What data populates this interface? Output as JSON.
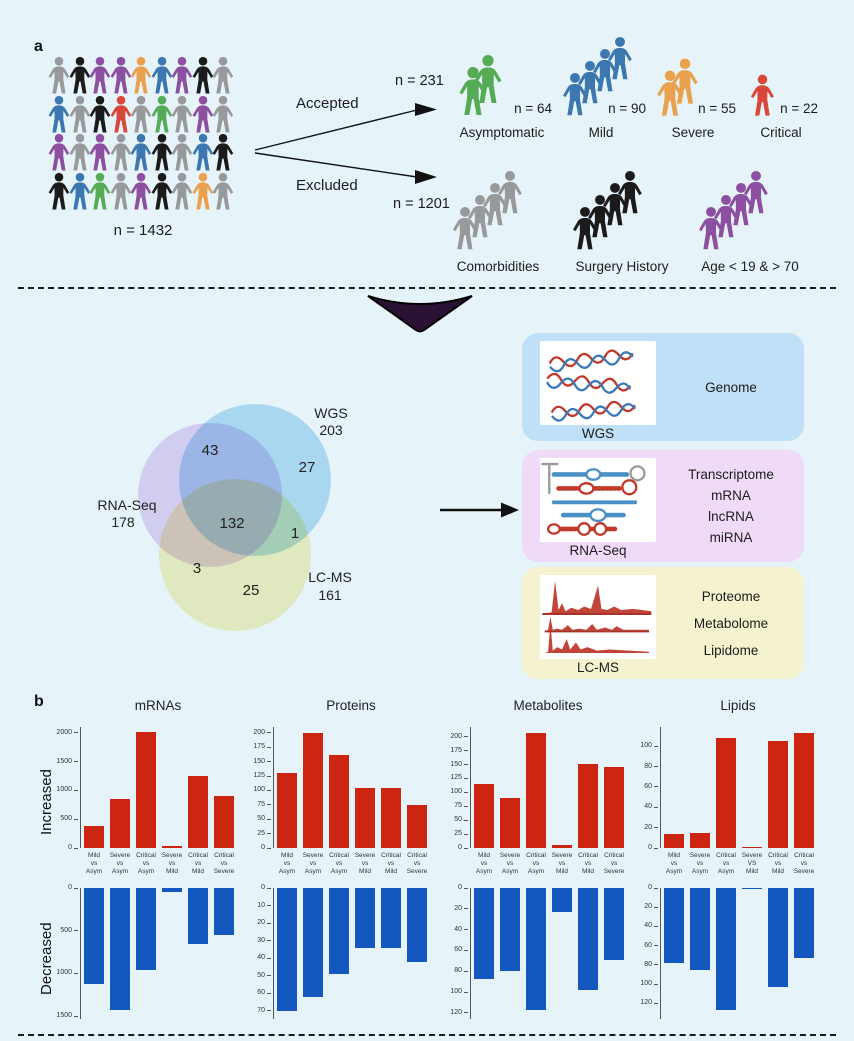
{
  "colors": {
    "background": "#e6f4f9",
    "increased": "#cc2613",
    "decreased": "#1457bf",
    "triangle": "#2b1133",
    "people": {
      "gray": "#97999b",
      "black": "#1b1b1b",
      "purple": "#8d4f9f",
      "orange": "#eaa14e",
      "blue": "#3c77b0",
      "red": "#d9473b",
      "green": "#56ab56"
    },
    "venn": {
      "wgs": "#b5def5",
      "rnaseq": "#e6d3f4",
      "lcms": "#f7f2bd"
    },
    "boxes": {
      "genome": "#bfe0f6",
      "rnaseq": "#efdbf8",
      "lcms": "#f5f3cf"
    }
  },
  "panel_a": {
    "label": "a",
    "cohort": {
      "n_label": "n = 1432",
      "grid": [
        [
          "gray",
          "black",
          "purple",
          "purple",
          "orange",
          "blue",
          "purple",
          "black",
          "gray"
        ],
        [
          "blue",
          "gray",
          "black",
          "red",
          "gray",
          "green",
          "gray",
          "purple",
          "gray"
        ],
        [
          "purple",
          "gray",
          "purple",
          "gray",
          "blue",
          "black",
          "gray",
          "blue",
          "black"
        ],
        [
          "black",
          "blue",
          "green",
          "gray",
          "purple",
          "black",
          "gray",
          "orange",
          "gray"
        ]
      ]
    },
    "accepted": {
      "label": "Accepted",
      "n_label": "n = 231",
      "groups": [
        {
          "name": "Asymptomatic",
          "n_label": "n = 64",
          "color": "green",
          "figures": 2
        },
        {
          "name": "Mild",
          "n_label": "n = 90",
          "color": "blue",
          "figures": 4
        },
        {
          "name": "Severe",
          "n_label": "n = 55",
          "color": "orange",
          "figures": 2
        },
        {
          "name": "Critical",
          "n_label": "n = 22",
          "color": "red",
          "figures": 1
        }
      ]
    },
    "excluded": {
      "label": "Excluded",
      "n_label": "n = 1201",
      "groups": [
        {
          "name": "Comorbidities",
          "color": "gray",
          "figures": 4
        },
        {
          "name": "Surgery History",
          "color": "black",
          "figures": 4
        },
        {
          "name": "Age < 19 & > 70",
          "color": "purple",
          "figures": 4
        }
      ]
    },
    "venn": {
      "wgs_label": "WGS",
      "wgs_total": "203",
      "rnaseq_label": "RNA-Seq",
      "rnaseq_total": "178",
      "lcms_label": "LC-MS",
      "lcms_total": "161",
      "regions": {
        "rnaseq_wgs": "43",
        "wgs_only": "27",
        "all_three": "132",
        "wgs_lcms": "1",
        "rnaseq_lcms": "3",
        "lcms_only": "25"
      }
    },
    "omics_boxes": [
      {
        "method": "WGS",
        "items": [
          "Genome"
        ]
      },
      {
        "method": "RNA-Seq",
        "items": [
          "Transcriptome",
          "mRNA",
          "lncRNA",
          "miRNA"
        ]
      },
      {
        "method": "LC-MS",
        "items": [
          "Proteome",
          "Metabolome",
          "Lipidome"
        ]
      }
    ]
  },
  "panel_b": {
    "label": "b",
    "increased_label": "Increased",
    "decreased_label": "Decreased"
  },
  "chart_data": [
    {
      "type": "bar",
      "title": "mRNAs",
      "categories": [
        "Mild vs Asym",
        "Severe vs Asym",
        "Critical vs Asym",
        "Severe vs Mild",
        "Critical vs Mild",
        "Critical vs Severe"
      ],
      "series": [
        {
          "name": "Increased",
          "values": [
            390,
            850,
            2020,
            30,
            1250,
            900
          ]
        },
        {
          "name": "Decreased",
          "values": [
            1120,
            1430,
            960,
            50,
            660,
            550
          ]
        }
      ],
      "increased_yticks": [
        0,
        500,
        1000,
        1500,
        2000
      ],
      "decreased_yticks": [
        0,
        500,
        1000,
        1500
      ],
      "increased_ylim": [
        0,
        2050
      ],
      "decreased_ylim": [
        0,
        1500
      ]
    },
    {
      "type": "bar",
      "title": "Proteins",
      "categories": [
        "Mild vs Asym",
        "Severe vs Asym",
        "Critical vs Asym",
        "Severe vs Mild",
        "Critical vs Mild",
        "Critical vs Severe"
      ],
      "series": [
        {
          "name": "Increased",
          "values": [
            130,
            200,
            162,
            105,
            105,
            75
          ]
        },
        {
          "name": "Decreased",
          "values": [
            70,
            62,
            49,
            34,
            34,
            42
          ]
        }
      ],
      "increased_yticks": [
        0,
        25,
        50,
        75,
        100,
        125,
        150,
        175,
        200
      ],
      "decreased_yticks": [
        0,
        10,
        20,
        30,
        40,
        50,
        60,
        70
      ],
      "increased_ylim": [
        0,
        205
      ],
      "decreased_ylim": [
        0,
        73
      ]
    },
    {
      "type": "bar",
      "title": "Metabolites",
      "categories": [
        "Mild vs Asym",
        "Severe vs Asym",
        "Critical vs Asym",
        "Severe vs Mild",
        "Critical vs Mild",
        "Critical vs Severe"
      ],
      "series": [
        {
          "name": "Increased",
          "values": [
            115,
            90,
            207,
            5,
            151,
            146
          ]
        },
        {
          "name": "Decreased",
          "values": [
            87,
            80,
            117,
            23,
            98,
            69
          ]
        }
      ],
      "increased_yticks": [
        0,
        25,
        50,
        75,
        100,
        125,
        150,
        175,
        200
      ],
      "decreased_yticks": [
        0,
        20,
        40,
        60,
        80,
        100,
        120
      ],
      "increased_ylim": [
        0,
        212
      ],
      "decreased_ylim": [
        0,
        123
      ]
    },
    {
      "type": "bar",
      "title": "Lipids",
      "categories": [
        "Mild vs Asym",
        "Severe vs Asym",
        "Critical vs Asym",
        "Severe VS Mild",
        "Critical vs Mild",
        "Critical vs Severe"
      ],
      "series": [
        {
          "name": "Increased",
          "values": [
            14,
            15,
            108,
            1,
            105,
            113
          ]
        },
        {
          "name": "Decreased",
          "values": [
            78,
            85,
            127,
            1,
            103,
            73
          ]
        }
      ],
      "increased_yticks": [
        0,
        20,
        40,
        60,
        80,
        100
      ],
      "decreased_yticks": [
        0,
        20,
        40,
        60,
        80,
        100,
        120
      ],
      "increased_ylim": [
        0,
        116
      ],
      "decreased_ylim": [
        0,
        133
      ]
    }
  ]
}
